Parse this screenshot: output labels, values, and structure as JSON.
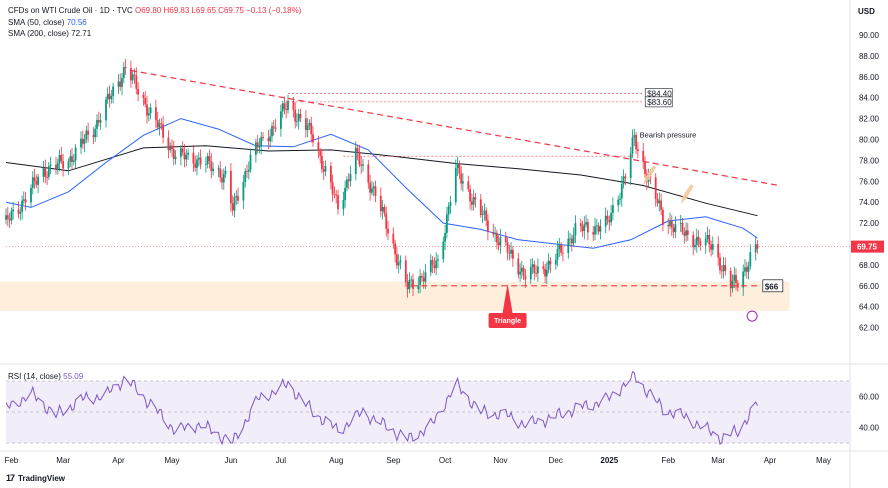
{
  "header": {
    "symbol_line": "CFDs on WTI Crude Oil · 1D · TVC",
    "ohlc": "O69.80 H69.83 L69.65 C69.75 −0.13 (−0.18%)",
    "sma50_label": "SMA (50, close)",
    "sma50_value": "70.56",
    "sma200_label": "SMA (200, close)",
    "sma200_value": "72.71"
  },
  "currency": "USD",
  "rsi": {
    "label": "RSI (14, close)",
    "value": "55.09"
  },
  "branding": {
    "logo": "17",
    "name": "TradingView"
  },
  "colors": {
    "up": "#089981",
    "down": "#f23645",
    "sma50": "#2962ff",
    "sma200": "#131722",
    "resistance": "#f23645",
    "support_zone": "#fde9d2",
    "rsi": "#7e57c2",
    "rsi_band": "#ede7f6",
    "arrow": "#f5c99a"
  },
  "chart_data": [
    {
      "type": "candlestick",
      "title": "CFDs on WTI Crude Oil",
      "ylabel": "USD",
      "ylim": [
        61.5,
        91.5
      ],
      "y_ticks": [
        "90.00",
        "88.00",
        "86.00",
        "84.00",
        "82.00",
        "80.00",
        "78.00",
        "76.00",
        "74.00",
        "72.00",
        "70.00",
        "68.00",
        "66.00",
        "64.00",
        "62.00"
      ],
      "x_ticks": [
        "Feb",
        "Mar",
        "Apr",
        "May",
        "Jun",
        "Jul",
        "Aug",
        "Sep",
        "Oct",
        "Nov",
        "Dec",
        "2025",
        "Feb",
        "Mar",
        "Apr",
        "May"
      ],
      "close_anchors": [
        {
          "date": "2024-01-29",
          "value": 72.0
        },
        {
          "date": "2024-02-05",
          "value": 73.5
        },
        {
          "date": "2024-02-19",
          "value": 77.0
        },
        {
          "date": "2024-03-04",
          "value": 78.0
        },
        {
          "date": "2024-03-18",
          "value": 81.0
        },
        {
          "date": "2024-04-05",
          "value": 86.9
        },
        {
          "date": "2024-04-19",
          "value": 82.5
        },
        {
          "date": "2024-05-03",
          "value": 78.5
        },
        {
          "date": "2024-05-17",
          "value": 78.0
        },
        {
          "date": "2024-05-31",
          "value": 76.5
        },
        {
          "date": "2024-06-04",
          "value": 73.2
        },
        {
          "date": "2024-06-14",
          "value": 78.3
        },
        {
          "date": "2024-06-28",
          "value": 81.5
        },
        {
          "date": "2024-07-05",
          "value": 83.4
        },
        {
          "date": "2024-07-19",
          "value": 80.3
        },
        {
          "date": "2024-08-02",
          "value": 73.5
        },
        {
          "date": "2024-08-12",
          "value": 78.5
        },
        {
          "date": "2024-08-23",
          "value": 74.8
        },
        {
          "date": "2024-09-10",
          "value": 65.8
        },
        {
          "date": "2024-09-27",
          "value": 68.2
        },
        {
          "date": "2024-10-07",
          "value": 77.1
        },
        {
          "date": "2024-10-25",
          "value": 71.8
        },
        {
          "date": "2024-11-15",
          "value": 67.0
        },
        {
          "date": "2024-11-29",
          "value": 68.0
        },
        {
          "date": "2024-12-13",
          "value": 71.3
        },
        {
          "date": "2024-12-31",
          "value": 71.9
        },
        {
          "date": "2025-01-10",
          "value": 76.6
        },
        {
          "date": "2025-01-15",
          "value": 80.0
        },
        {
          "date": "2025-01-31",
          "value": 72.5
        },
        {
          "date": "2025-02-14",
          "value": 70.7
        },
        {
          "date": "2025-02-28",
          "value": 69.8
        },
        {
          "date": "2025-03-10",
          "value": 66.0
        },
        {
          "date": "2025-03-14",
          "value": 66.5
        },
        {
          "date": "2025-03-25",
          "value": 69.75
        }
      ],
      "sma50": [
        {
          "date": "2024-01-29",
          "value": 74.0
        },
        {
          "date": "2024-02-12",
          "value": 73.5
        },
        {
          "date": "2024-03-04",
          "value": 75.0
        },
        {
          "date": "2024-03-25",
          "value": 77.8
        },
        {
          "date": "2024-04-15",
          "value": 80.4
        },
        {
          "date": "2024-05-06",
          "value": 82.0
        },
        {
          "date": "2024-05-27",
          "value": 81.0
        },
        {
          "date": "2024-06-17",
          "value": 79.4
        },
        {
          "date": "2024-07-08",
          "value": 79.3
        },
        {
          "date": "2024-07-29",
          "value": 80.5
        },
        {
          "date": "2024-08-19",
          "value": 79.0
        },
        {
          "date": "2024-09-09",
          "value": 75.4
        },
        {
          "date": "2024-09-30",
          "value": 72.0
        },
        {
          "date": "2024-10-21",
          "value": 71.4
        },
        {
          "date": "2024-11-11",
          "value": 70.4
        },
        {
          "date": "2024-12-02",
          "value": 70.0
        },
        {
          "date": "2024-12-23",
          "value": 69.6
        },
        {
          "date": "2025-01-13",
          "value": 70.4
        },
        {
          "date": "2025-02-03",
          "value": 72.2
        },
        {
          "date": "2025-02-24",
          "value": 72.6
        },
        {
          "date": "2025-03-17",
          "value": 71.5
        },
        {
          "date": "2025-03-25",
          "value": 70.56
        }
      ],
      "sma200": [
        {
          "date": "2024-01-29",
          "value": 77.8
        },
        {
          "date": "2024-03-04",
          "value": 77.0
        },
        {
          "date": "2024-04-15",
          "value": 79.2
        },
        {
          "date": "2024-05-20",
          "value": 79.4
        },
        {
          "date": "2024-06-24",
          "value": 78.9
        },
        {
          "date": "2024-07-29",
          "value": 79.0
        },
        {
          "date": "2024-09-02",
          "value": 78.4
        },
        {
          "date": "2024-10-07",
          "value": 77.7
        },
        {
          "date": "2024-11-11",
          "value": 77.2
        },
        {
          "date": "2024-12-16",
          "value": 76.6
        },
        {
          "date": "2025-01-20",
          "value": 75.6
        },
        {
          "date": "2025-02-24",
          "value": 73.9
        },
        {
          "date": "2025-03-25",
          "value": 72.71
        }
      ],
      "annotations": {
        "resistance_line": {
          "from": {
            "date": "2024-04-08",
            "value": 86.6
          },
          "to": {
            "date": "2025-04-06",
            "value": 75.6
          },
          "style": "dashed"
        },
        "support_line": {
          "from": {
            "date": "2024-09-12",
            "value": 66.0
          },
          "to": {
            "date": "2025-03-26",
            "value": 66.0
          },
          "style": "dashed"
        },
        "support_zone": {
          "from_date": "2024-01-29",
          "to_date": "2025-04-12",
          "low": 63.6,
          "high": 66.4
        },
        "levels": [
          {
            "label": "$84.40",
            "value": 84.4,
            "from_date": "2024-07-05"
          },
          {
            "label": "$83.60",
            "value": 83.6,
            "from_date": "2024-07-05"
          },
          {
            "label": "",
            "value": 78.4,
            "from_date": "2024-08-05",
            "to_date": "2025-01-15"
          }
        ],
        "support_label": "$66",
        "bearish_text": "Bearish pressure",
        "triangle_text": "Triangle",
        "triangle_marker_date": "2024-11-05",
        "arrows": [
          {
            "date": "2025-01-20",
            "value": 76.0
          },
          {
            "date": "2025-02-10",
            "value": 74.2
          }
        ]
      },
      "last_price": "69.75"
    },
    {
      "type": "line",
      "title": "RSI (14, close)",
      "ylim": [
        28,
        72
      ],
      "y_ticks": [
        "60.00",
        "40.00"
      ],
      "bands": [
        30,
        50,
        70
      ],
      "series": [
        {
          "name": "RSI",
          "points": [
            {
              "date": "2024-01-29",
              "value": 52
            },
            {
              "date": "2024-02-12",
              "value": 62
            },
            {
              "date": "2024-02-26",
              "value": 48
            },
            {
              "date": "2024-03-11",
              "value": 58
            },
            {
              "date": "2024-03-25",
              "value": 61
            },
            {
              "date": "2024-04-05",
              "value": 72
            },
            {
              "date": "2024-04-19",
              "value": 55
            },
            {
              "date": "2024-05-03",
              "value": 38
            },
            {
              "date": "2024-05-17",
              "value": 42
            },
            {
              "date": "2024-06-04",
              "value": 30
            },
            {
              "date": "2024-06-18",
              "value": 58
            },
            {
              "date": "2024-07-05",
              "value": 68
            },
            {
              "date": "2024-07-19",
              "value": 50
            },
            {
              "date": "2024-08-02",
              "value": 38
            },
            {
              "date": "2024-08-16",
              "value": 50
            },
            {
              "date": "2024-09-10",
              "value": 32
            },
            {
              "date": "2024-09-24",
              "value": 42
            },
            {
              "date": "2024-10-07",
              "value": 68
            },
            {
              "date": "2024-10-21",
              "value": 50
            },
            {
              "date": "2024-11-04",
              "value": 48
            },
            {
              "date": "2024-11-15",
              "value": 42
            },
            {
              "date": "2024-11-29",
              "value": 46
            },
            {
              "date": "2024-12-13",
              "value": 52
            },
            {
              "date": "2024-12-31",
              "value": 58
            },
            {
              "date": "2025-01-15",
              "value": 73
            },
            {
              "date": "2025-01-31",
              "value": 52
            },
            {
              "date": "2025-02-14",
              "value": 46
            },
            {
              "date": "2025-03-05",
              "value": 33
            },
            {
              "date": "2025-03-14",
              "value": 38
            },
            {
              "date": "2025-03-25",
              "value": 55.09
            }
          ]
        }
      ]
    }
  ]
}
